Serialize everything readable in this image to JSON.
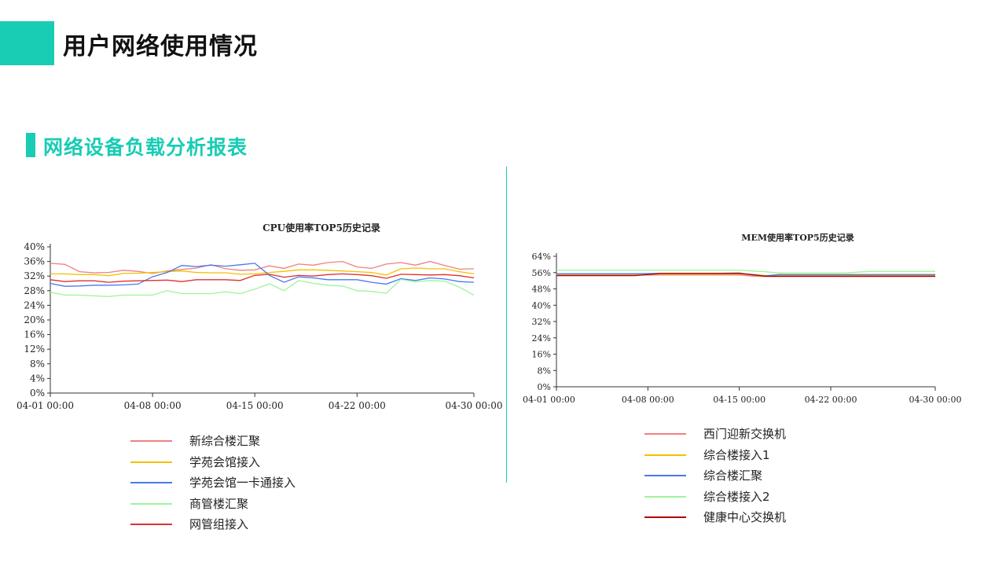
{
  "header": {
    "title": "用户网络使用情况"
  },
  "section": {
    "title": "网络设备负载分析报表"
  },
  "chart_data": [
    {
      "type": "line",
      "title": "CPU使用率TOP5历史记录",
      "y_ticks": [
        "0%",
        "4%",
        "8%",
        "12%",
        "16%",
        "20%",
        "24%",
        "28%",
        "32%",
        "36%",
        "40%"
      ],
      "ylim": [
        0,
        40
      ],
      "x_ticks": [
        {
          "label": "04-01  00:00",
          "day": 1
        },
        {
          "label": "04-08  00:00",
          "day": 8
        },
        {
          "label": "04-15  00:00",
          "day": 15
        },
        {
          "label": "04-22  00:00",
          "day": 22
        },
        {
          "label": "04-30  00:00",
          "day": 30
        }
      ],
      "xlim": [
        1,
        30
      ],
      "x": [
        1,
        2,
        3,
        4,
        5,
        6,
        7,
        8,
        9,
        10,
        11,
        12,
        13,
        14,
        15,
        16,
        17,
        18,
        19,
        20,
        21,
        22,
        23,
        24,
        25,
        26,
        27,
        28,
        29,
        30
      ],
      "series": [
        {
          "name": "新综合楼汇聚",
          "color": "#f08080",
          "values": [
            35.5,
            35.2,
            33.2,
            32.9,
            33.0,
            33.6,
            33.3,
            32.7,
            33.4,
            33.8,
            34.2,
            35.1,
            34.0,
            33.6,
            33.7,
            34.8,
            34.1,
            35.3,
            35.0,
            35.7,
            36.0,
            34.5,
            34.1,
            35.3,
            35.7,
            35.0,
            36.0,
            34.9,
            33.9,
            34.0
          ]
        },
        {
          "name": "学苑会馆接入",
          "color": "#f2c200",
          "values": [
            32.6,
            32.6,
            32.4,
            32.4,
            32.1,
            32.7,
            32.8,
            33.0,
            33.2,
            33.4,
            33.0,
            32.9,
            32.9,
            32.5,
            32.6,
            33.0,
            33.3,
            33.7,
            33.7,
            33.6,
            33.4,
            33.2,
            33.0,
            32.3,
            34.0,
            34.2,
            34.0,
            34.0,
            33.2,
            32.6
          ]
        },
        {
          "name": "学苑会馆一卡通接入",
          "color": "#4a78ee",
          "values": [
            30.0,
            29.2,
            29.3,
            29.5,
            29.5,
            29.6,
            29.8,
            31.8,
            33.0,
            34.9,
            34.6,
            35.0,
            34.7,
            35.1,
            35.5,
            32.2,
            30.3,
            31.8,
            31.5,
            31.0,
            31.0,
            31.0,
            30.3,
            29.8,
            31.3,
            30.8,
            31.5,
            31.2,
            30.5,
            30.3
          ]
        },
        {
          "name": "商管楼汇聚",
          "color": "#9cf59c",
          "values": [
            27.6,
            26.8,
            26.8,
            26.6,
            26.4,
            26.8,
            26.8,
            26.8,
            28.0,
            27.2,
            27.2,
            27.2,
            27.7,
            27.2,
            28.4,
            29.9,
            28.0,
            30.8,
            30.0,
            29.5,
            29.3,
            28.0,
            27.8,
            27.3,
            31.1,
            30.4,
            30.8,
            30.6,
            29.0,
            26.8
          ]
        },
        {
          "name": "网管组接入",
          "color": "#e03030",
          "values": [
            31.0,
            30.5,
            30.7,
            30.7,
            30.3,
            30.6,
            30.7,
            30.8,
            30.9,
            30.5,
            31.0,
            31.0,
            31.0,
            30.8,
            32.2,
            32.5,
            31.7,
            32.2,
            32.0,
            32.4,
            32.6,
            32.4,
            32.1,
            31.4,
            32.5,
            32.4,
            32.3,
            32.4,
            32.1,
            31.5
          ]
        }
      ]
    },
    {
      "type": "line",
      "title": "MEM使用率TOP5历史记录",
      "y_ticks": [
        "0%",
        "8%",
        "16%",
        "24%",
        "32%",
        "40%",
        "48%",
        "56%",
        "64%"
      ],
      "ylim": [
        0,
        64
      ],
      "x_ticks": [
        {
          "label": "04-01  00:00",
          "day": 1
        },
        {
          "label": "04-08  00:00",
          "day": 8
        },
        {
          "label": "04-15  00:00",
          "day": 15
        },
        {
          "label": "04-22  00:00",
          "day": 22
        },
        {
          "label": "04-30  00:00",
          "day": 30
        }
      ],
      "xlim": [
        1,
        30
      ],
      "x": [
        1,
        3,
        5,
        7,
        9,
        11,
        13,
        15,
        16,
        17,
        18,
        19,
        21,
        23,
        25,
        27,
        29,
        30
      ],
      "series": [
        {
          "name": "西门迎新交换机",
          "color": "#f08080",
          "values": [
            54.8,
            54.8,
            54.8,
            54.8,
            54.8,
            54.8,
            54.8,
            54.8,
            54.3,
            54.0,
            54.0,
            54.0,
            54.0,
            54.0,
            54.0,
            54.0,
            54.0,
            54.0
          ]
        },
        {
          "name": "综合楼接入1",
          "color": "#f2c200",
          "values": [
            55.2,
            55.2,
            55.2,
            55.2,
            55.3,
            55.3,
            55.3,
            55.3,
            55.0,
            54.6,
            54.6,
            54.6,
            54.6,
            54.6,
            54.6,
            54.6,
            54.6,
            54.6
          ]
        },
        {
          "name": "综合楼汇聚",
          "color": "#4a78ee",
          "values": [
            55.4,
            55.4,
            55.4,
            55.4,
            55.6,
            55.6,
            55.6,
            55.8,
            54.8,
            54.4,
            55.0,
            55.0,
            55.0,
            55.0,
            55.0,
            55.0,
            55.0,
            55.0
          ]
        },
        {
          "name": "综合楼接入2",
          "color": "#9cf59c",
          "values": [
            57.2,
            57.2,
            57.2,
            57.2,
            57.2,
            57.2,
            57.2,
            57.2,
            56.8,
            56.4,
            55.8,
            55.8,
            55.8,
            55.8,
            56.6,
            56.6,
            56.6,
            56.6
          ]
        },
        {
          "name": "健康中心交换机",
          "color": "#b00000",
          "values": [
            54.5,
            54.5,
            54.5,
            54.5,
            55.6,
            55.6,
            55.6,
            55.6,
            55.0,
            54.2,
            54.2,
            54.2,
            54.2,
            54.2,
            54.2,
            54.2,
            54.2,
            54.2
          ]
        }
      ]
    }
  ]
}
